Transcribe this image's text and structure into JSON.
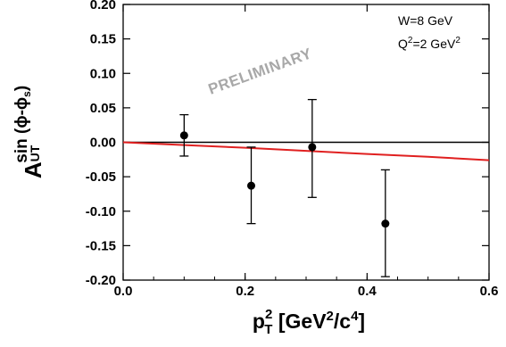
{
  "chart_data": {
    "type": "scatter",
    "title": "",
    "xlabel": {
      "base": "p",
      "sup": "2",
      "sub": "T",
      "unit_open": " [GeV",
      "unit_sup1": "2",
      "unit_mid": "/c",
      "unit_sup2": "4",
      "unit_close": "]"
    },
    "ylabel": {
      "base": "A",
      "sup": "sin (ϕ-ϕ",
      "sup_sub": "s",
      "sup_close": ")",
      "sub": "UT"
    },
    "xlim": [
      0.0,
      0.6
    ],
    "ylim": [
      -0.2,
      0.2
    ],
    "xticks": [
      0.0,
      0.2,
      0.4,
      0.6
    ],
    "xtick_labels": [
      "0.0",
      "0.2",
      "0.4",
      "0.6"
    ],
    "yticks": [
      -0.2,
      -0.15,
      -0.1,
      -0.05,
      0.0,
      0.05,
      0.1,
      0.15,
      0.2
    ],
    "ytick_labels": [
      "-0.20",
      "-0.15",
      "-0.10",
      "-0.05",
      "0.00",
      "0.05",
      "0.10",
      "0.15",
      "0.20"
    ],
    "grid": false,
    "series": [
      {
        "marker": "circle",
        "color": "#000000",
        "points": [
          {
            "x": 0.1,
            "y": 0.01,
            "yerr_low": -0.02,
            "yerr_high": 0.04
          },
          {
            "x": 0.21,
            "y": -0.063,
            "yerr_low": -0.118,
            "yerr_high": -0.007
          },
          {
            "x": 0.31,
            "y": -0.007,
            "yerr_low": -0.08,
            "yerr_high": 0.062
          },
          {
            "x": 0.43,
            "y": -0.118,
            "yerr_low": -0.195,
            "yerr_high": -0.04
          }
        ]
      }
    ],
    "zero_line": {
      "y": 0.0,
      "color": "#000000"
    },
    "curve": {
      "color": "#e02020",
      "x": [
        0.0,
        0.1,
        0.2,
        0.3,
        0.4,
        0.5,
        0.6
      ],
      "y": [
        0.0,
        -0.004,
        -0.008,
        -0.0125,
        -0.017,
        -0.021,
        -0.026
      ]
    },
    "annotations": {
      "w": "W=8 GeV",
      "q_base": "Q",
      "q_sup": "2",
      "q_mid": "=2 GeV",
      "q_sup2": "2"
    },
    "watermark": "PRELIMINARY"
  }
}
